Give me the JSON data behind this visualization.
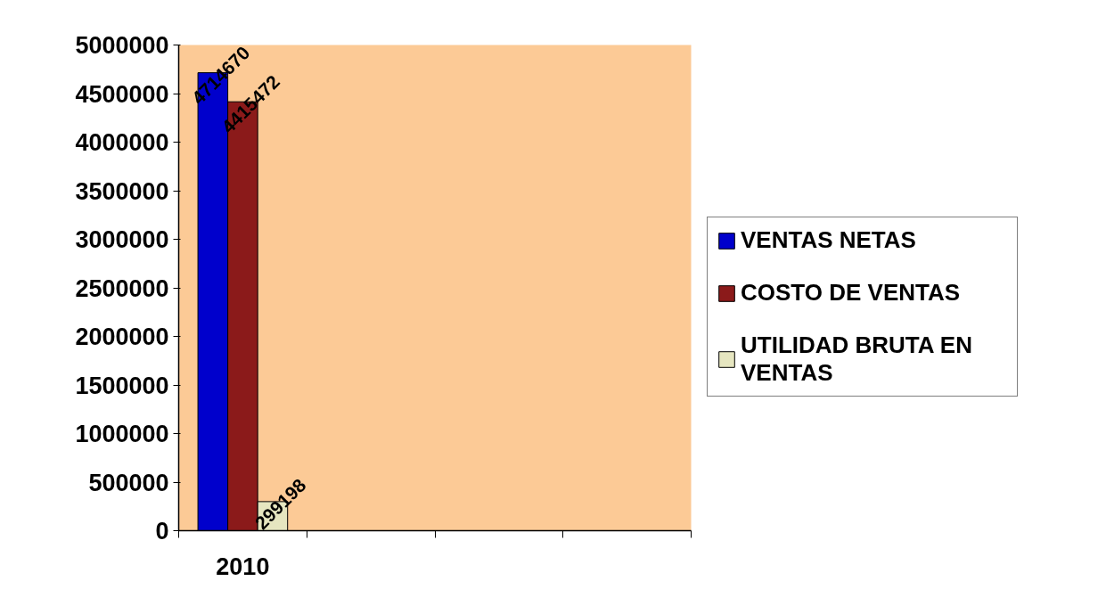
{
  "chart_data": {
    "type": "bar",
    "categories": [
      "2010",
      null,
      null,
      null
    ],
    "series": [
      {
        "name": "VENTAS NETAS",
        "color": "#0000cc",
        "values": [
          4714670,
          null,
          null,
          null
        ]
      },
      {
        "name": "COSTO DE VENTAS",
        "color": "#8b1a1a",
        "values": [
          4415472,
          null,
          null,
          null
        ]
      },
      {
        "name": "UTILIDAD BRUTA EN VENTAS",
        "color": "#e6e6c0",
        "values": [
          299198,
          null,
          null,
          null
        ]
      }
    ],
    "ylim": [
      0,
      5000000
    ],
    "yticks": [
      0,
      500000,
      1000000,
      1500000,
      2000000,
      2500000,
      3000000,
      3500000,
      4000000,
      4500000,
      5000000
    ],
    "grid": false,
    "legend": "right",
    "data_labels": true
  }
}
